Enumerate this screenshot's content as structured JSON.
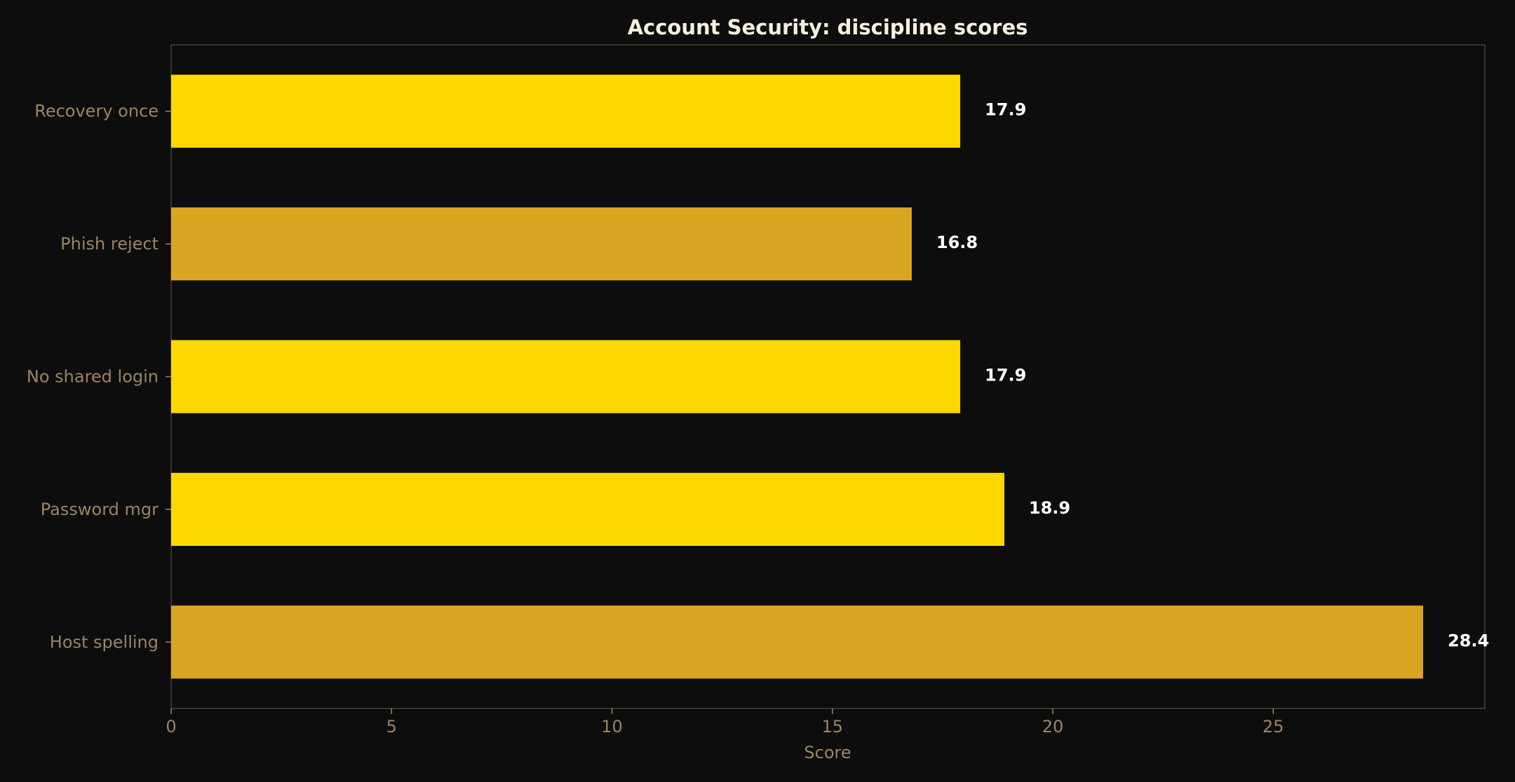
{
  "chart_data": {
    "type": "bar",
    "orientation": "horizontal",
    "title": "Account Security: discipline scores",
    "xlabel": "Score",
    "ylabel": "",
    "categories": [
      "Host spelling",
      "Password mgr",
      "No shared login",
      "Phish reject",
      "Recovery once"
    ],
    "values": [
      28.4,
      18.9,
      17.9,
      16.8,
      17.9
    ],
    "value_labels": [
      "28.4",
      "18.9",
      "17.9",
      "16.8",
      "17.9"
    ],
    "bar_colors": [
      "#DAA520",
      "#FFD700",
      "#FFD700",
      "#DAA520",
      "#FFD700"
    ],
    "xlim": [
      0,
      29.8
    ],
    "xticks": [
      0,
      5,
      10,
      15,
      20,
      25
    ],
    "xtick_labels": [
      "0",
      "5",
      "10",
      "15",
      "20",
      "25"
    ],
    "grid": false,
    "legend": "none"
  },
  "colors": {
    "background": "#0d0d0d",
    "axis_frame": "#4a4030",
    "tick_text": "#9b8463",
    "title_text": "#f5f0dc",
    "value_text": "#ffffff",
    "bar_primary": "#FFD700",
    "bar_highlight": "#DAA520"
  }
}
